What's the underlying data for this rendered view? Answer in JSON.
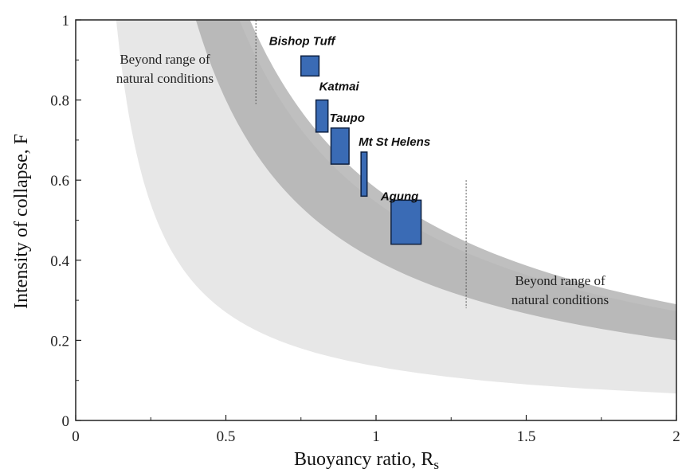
{
  "chart_data": {
    "type": "scatter",
    "title": "",
    "xlabel": "Buoyancy ratio, R",
    "xlabel_sub": "s",
    "ylabel": "Intensity of collapse, F",
    "xlim": [
      0,
      2
    ],
    "ylim": [
      0,
      1
    ],
    "x_ticks": [
      "0",
      "0.5",
      "1",
      "1.5",
      "2"
    ],
    "y_ticks": [
      "0",
      "0.2",
      "0.4",
      "0.6",
      "0.8",
      "1"
    ],
    "grid": false,
    "colors": {
      "box_fill": "#3a6bb5",
      "box_stroke": "#0d1f3f",
      "outer_band": "#e7e7e7",
      "inner_band": "#a9a9a9"
    },
    "bands": [
      {
        "kind": "outer",
        "F_times_R_range": [
          0.135,
          0.545
        ]
      },
      {
        "kind": "inner",
        "F_times_R_range": [
          0.4,
          0.58
        ]
      }
    ],
    "natural_limits": [
      {
        "x": 0.6,
        "y_range": [
          0.79,
          1.0
        ],
        "label": [
          "Beyond range of",
          "natural conditions"
        ]
      },
      {
        "x": 1.3,
        "y_range": [
          0.28,
          0.6
        ],
        "label": [
          "Beyond range of",
          "natural conditions"
        ]
      }
    ],
    "points": [
      {
        "name": "Bishop Tuff",
        "x_range": [
          0.75,
          0.81
        ],
        "y_range": [
          0.86,
          0.91
        ]
      },
      {
        "name": "Katmai",
        "x_range": [
          0.8,
          0.84
        ],
        "y_range": [
          0.72,
          0.8
        ]
      },
      {
        "name": "Taupo",
        "x_range": [
          0.85,
          0.91
        ],
        "y_range": [
          0.64,
          0.73
        ]
      },
      {
        "name": "Mt St Helens",
        "x_range": [
          0.95,
          0.97
        ],
        "y_range": [
          0.56,
          0.67
        ]
      },
      {
        "name": "Agung",
        "x_range": [
          1.05,
          1.15
        ],
        "y_range": [
          0.44,
          0.55
        ]
      }
    ]
  }
}
